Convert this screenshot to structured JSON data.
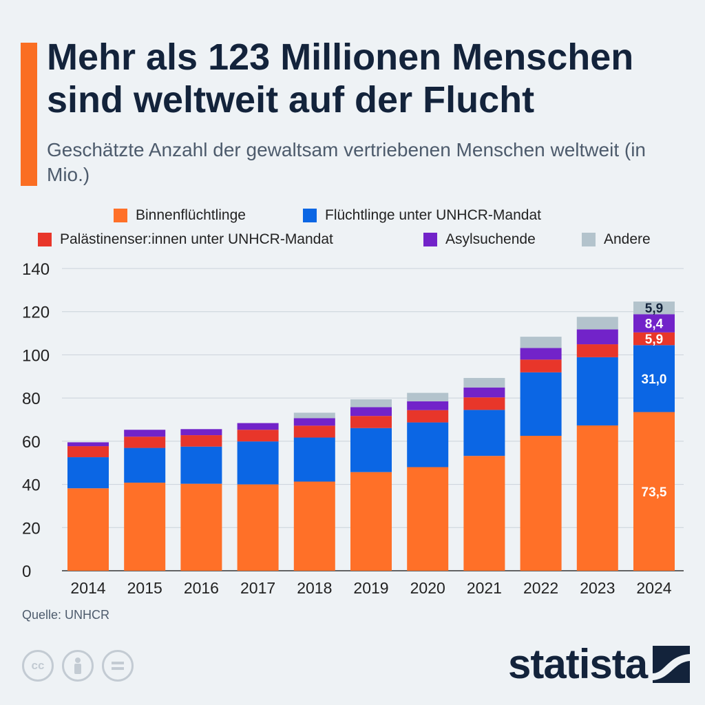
{
  "header": {
    "title": "Mehr als 123 Millionen Menschen sind weltweit auf der Flucht",
    "subtitle": "Geschätzte Anzahl der gewaltsam vertriebenen Menschen weltweit (in Mio.)"
  },
  "colors": {
    "accent": "#fa6e23",
    "binnen": "#ff7028",
    "unhcr": "#0b66e4",
    "palaestina": "#e8362a",
    "asyl": "#7223c9",
    "andere": "#b3c3cc",
    "grid": "#c9d2da",
    "dark": "#13233b"
  },
  "source": "Quelle: UNHCR",
  "license_icons": [
    "cc-icon",
    "person-icon",
    "equals-icon"
  ],
  "brand": {
    "name": "statista"
  },
  "chart_data": {
    "type": "bar",
    "stacked": true,
    "categories": [
      "2014",
      "2015",
      "2016",
      "2017",
      "2018",
      "2019",
      "2020",
      "2021",
      "2022",
      "2023",
      "2024"
    ],
    "series": [
      {
        "name": "Binnenflüchtlinge",
        "color": "#ff7028",
        "values": [
          38.2,
          40.8,
          40.3,
          40.0,
          41.3,
          45.7,
          48.0,
          53.2,
          62.5,
          67.3,
          73.5
        ]
      },
      {
        "name": "Flüchtlinge unter UNHCR-Mandat",
        "color": "#0b66e4",
        "values": [
          14.4,
          16.1,
          17.2,
          19.9,
          20.4,
          20.4,
          20.7,
          21.3,
          29.4,
          31.6,
          31.0
        ]
      },
      {
        "name": "Palästinenser:innen unter UNHCR-Mandat",
        "color": "#e8362a",
        "values": [
          5.1,
          5.2,
          5.3,
          5.4,
          5.5,
          5.6,
          5.7,
          5.8,
          5.9,
          6.0,
          5.9
        ]
      },
      {
        "name": "Asylsuchende",
        "color": "#7223c9",
        "values": [
          1.8,
          3.2,
          2.8,
          3.1,
          3.5,
          4.1,
          4.1,
          4.6,
          5.4,
          6.9,
          8.4
        ]
      },
      {
        "name": "Andere",
        "color": "#b3c3cc",
        "values": [
          0.0,
          0.0,
          0.0,
          0.0,
          2.5,
          3.6,
          3.9,
          4.4,
          5.2,
          5.8,
          5.9
        ]
      }
    ],
    "data_labels": [
      {
        "category": "2024",
        "series": "Binnenflüchtlinge",
        "text": "73,5"
      },
      {
        "category": "2024",
        "series": "Flüchtlinge unter UNHCR-Mandat",
        "text": "31,0"
      },
      {
        "category": "2024",
        "series": "Palästinenser:innen unter UNHCR-Mandat",
        "text": "5,9"
      },
      {
        "category": "2024",
        "series": "Asylsuchende",
        "text": "8,4"
      },
      {
        "category": "2024",
        "series": "Andere",
        "text": "5,9"
      }
    ],
    "ylim": [
      0,
      140
    ],
    "yticks": [
      0,
      20,
      40,
      60,
      80,
      100,
      120,
      140
    ],
    "grid": true,
    "legend_position": "top",
    "title": "",
    "xlabel": "",
    "ylabel": ""
  }
}
